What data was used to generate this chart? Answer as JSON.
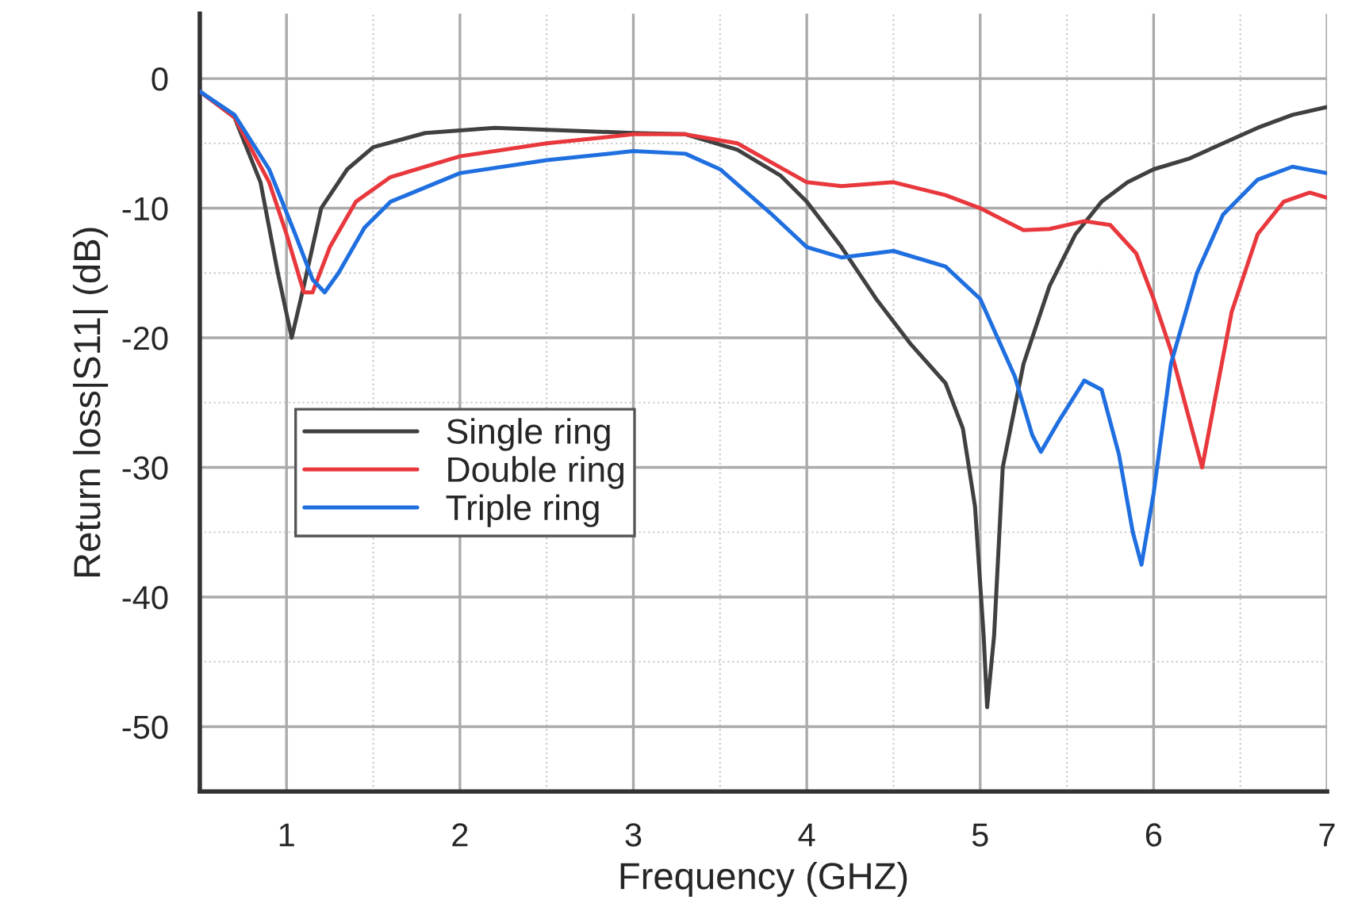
{
  "chart_data": {
    "type": "line",
    "xlabel": "Frequency (GHZ)",
    "ylabel": "Return loss|S11| (dB)",
    "xlim": [
      0.5,
      7
    ],
    "ylim": [
      -55,
      5
    ],
    "xticks": [
      {
        "value": 1,
        "label": "1"
      },
      {
        "value": 1.5,
        "label": null
      },
      {
        "value": 2,
        "label": "2"
      },
      {
        "value": 2.5,
        "label": null
      },
      {
        "value": 3,
        "label": "3"
      },
      {
        "value": 3.5,
        "label": null
      },
      {
        "value": 4,
        "label": "4"
      },
      {
        "value": 4.5,
        "label": null
      },
      {
        "value": 5,
        "label": "5"
      },
      {
        "value": 5.5,
        "label": null
      },
      {
        "value": 6,
        "label": "6"
      },
      {
        "value": 6.5,
        "label": null
      },
      {
        "value": 7,
        "label": "7"
      }
    ],
    "yticks": [
      {
        "value": 0,
        "label": "0"
      },
      {
        "value": -5,
        "label": null
      },
      {
        "value": -10,
        "label": "-10"
      },
      {
        "value": -15,
        "label": null
      },
      {
        "value": -20,
        "label": "-20"
      },
      {
        "value": -25,
        "label": null
      },
      {
        "value": -30,
        "label": "-30"
      },
      {
        "value": -35,
        "label": null
      },
      {
        "value": -40,
        "label": "-40"
      },
      {
        "value": -45,
        "label": null
      },
      {
        "value": -50,
        "label": "-50"
      }
    ],
    "grid": true,
    "legend": "left",
    "marker": "none",
    "line_style": "solid",
    "series": [
      {
        "name": "Single ring",
        "color": "#404040",
        "x": [
          0.5,
          0.7,
          0.85,
          0.95,
          1.03,
          1.1,
          1.2,
          1.35,
          1.5,
          1.8,
          2.2,
          2.6,
          3.0,
          3.3,
          3.6,
          3.85,
          4.0,
          4.2,
          4.4,
          4.6,
          4.8,
          4.9,
          4.97,
          5.02,
          5.04,
          5.08,
          5.13,
          5.25,
          5.4,
          5.55,
          5.7,
          5.85,
          6.0,
          6.2,
          6.4,
          6.6,
          6.8,
          7.0
        ],
        "values": [
          -1,
          -3,
          -8,
          -15,
          -20,
          -16,
          -10,
          -7,
          -5.3,
          -4.2,
          -3.8,
          -4,
          -4.2,
          -4.3,
          -5.5,
          -7.5,
          -9.5,
          -13,
          -17,
          -20.5,
          -23.5,
          -27,
          -33,
          -43,
          -48.5,
          -43,
          -30,
          -22,
          -16,
          -12,
          -9.5,
          -8,
          -7,
          -6.2,
          -5,
          -3.8,
          -2.8,
          -2.2
        ]
      },
      {
        "name": "Double ring",
        "color": "#e8383d",
        "x": [
          0.5,
          0.7,
          0.9,
          1.0,
          1.1,
          1.15,
          1.25,
          1.4,
          1.6,
          2.0,
          2.5,
          3.0,
          3.3,
          3.6,
          3.8,
          4.0,
          4.2,
          4.5,
          4.8,
          5.0,
          5.25,
          5.4,
          5.6,
          5.75,
          5.9,
          6.0,
          6.1,
          6.2,
          6.28,
          6.35,
          6.45,
          6.6,
          6.75,
          6.9,
          7.0
        ],
        "values": [
          -1,
          -3,
          -8,
          -12,
          -16.5,
          -16.5,
          -13,
          -9.5,
          -7.6,
          -6,
          -5,
          -4.3,
          -4.3,
          -5,
          -6.5,
          -8,
          -8.3,
          -8,
          -9,
          -10,
          -11.7,
          -11.6,
          -11,
          -11.3,
          -13.5,
          -17,
          -21,
          -26,
          -30,
          -25,
          -18,
          -12,
          -9.5,
          -8.8,
          -9.2
        ]
      },
      {
        "name": "Triple ring",
        "color": "#1f6fe0",
        "x": [
          0.5,
          0.7,
          0.9,
          1.05,
          1.15,
          1.22,
          1.3,
          1.45,
          1.6,
          2.0,
          2.5,
          3.0,
          3.3,
          3.5,
          3.8,
          4.0,
          4.2,
          4.5,
          4.8,
          5.0,
          5.2,
          5.3,
          5.35,
          5.45,
          5.6,
          5.7,
          5.8,
          5.88,
          5.93,
          6.0,
          6.1,
          6.25,
          6.4,
          6.6,
          6.8,
          7.0
        ],
        "values": [
          -1,
          -2.8,
          -7,
          -12,
          -15.5,
          -16.5,
          -15,
          -11.5,
          -9.5,
          -7.3,
          -6.3,
          -5.6,
          -5.8,
          -7,
          -10.5,
          -13,
          -13.8,
          -13.3,
          -14.5,
          -17,
          -23,
          -27.5,
          -28.8,
          -26.5,
          -23.3,
          -24,
          -29,
          -35,
          -37.5,
          -32,
          -22,
          -15,
          -10.5,
          -7.8,
          -6.8,
          -7.3
        ]
      }
    ]
  }
}
